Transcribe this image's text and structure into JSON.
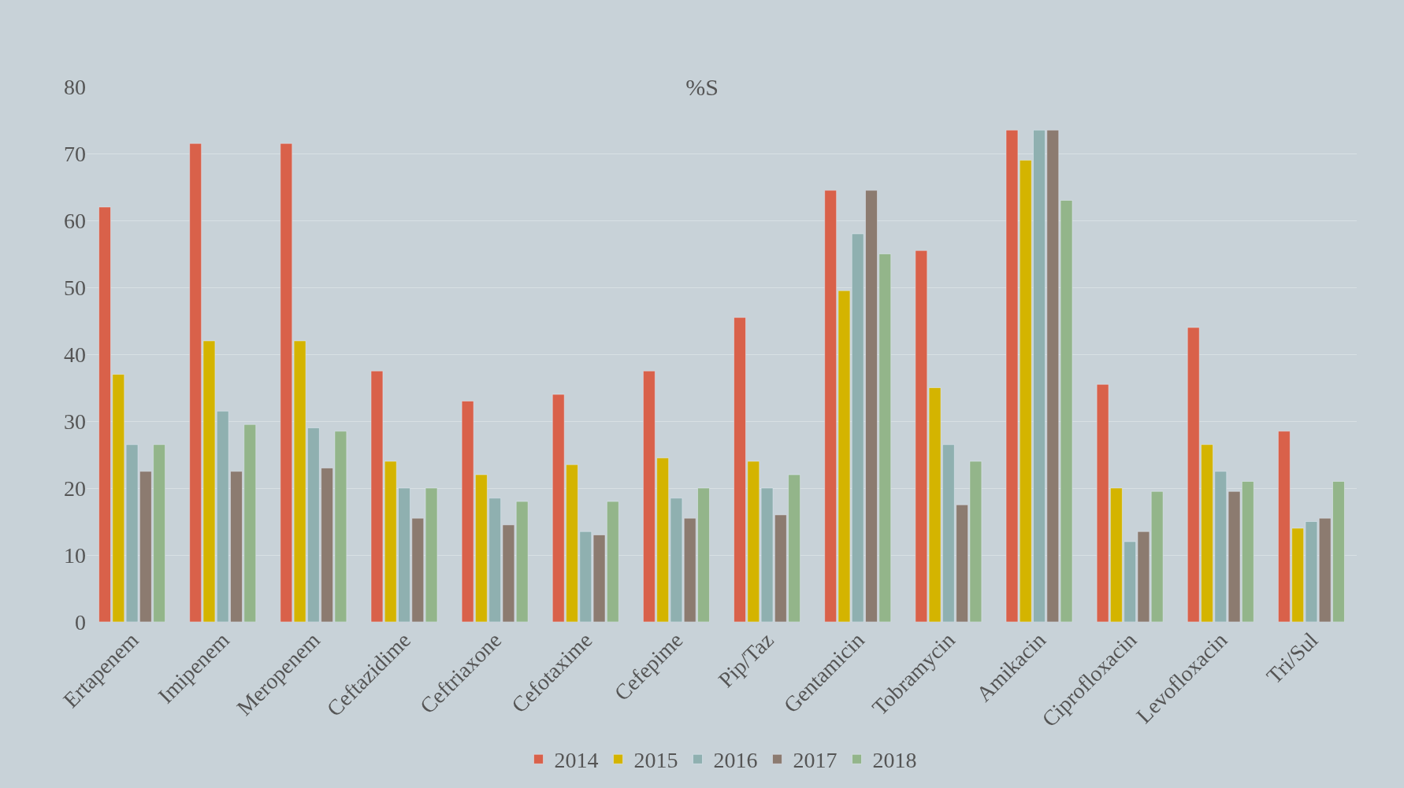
{
  "chart_data": {
    "type": "bar",
    "title": "%S",
    "categories": [
      "Ertapenem",
      "Imipenem",
      "Meropenem",
      "Ceftazidime",
      "Ceftriaxone",
      "Cefotaxime",
      "Cefepime",
      "Pip/Taz",
      "Gentamicin",
      "Tobramycin",
      "Amikacin",
      "Ciprofloxacin",
      "Levofloxacin",
      "Tri/Sul"
    ],
    "series": [
      {
        "name": "2014",
        "color": "#d9614a",
        "values": [
          62,
          71.5,
          71.5,
          37.5,
          33,
          34,
          37.5,
          45.5,
          64.5,
          55.5,
          73.5,
          35.5,
          44,
          28.5
        ]
      },
      {
        "name": "2015",
        "color": "#d4b400",
        "values": [
          37,
          42,
          42,
          24,
          22,
          23.5,
          24.5,
          24,
          49.5,
          35,
          69,
          20,
          26.5,
          14
        ]
      },
      {
        "name": "2016",
        "color": "#8fb0b0",
        "values": [
          26.5,
          31.5,
          29,
          20,
          18.5,
          13.5,
          18.5,
          20,
          58,
          26.5,
          73.5,
          12,
          22.5,
          15
        ]
      },
      {
        "name": "2017",
        "color": "#8c7b70",
        "values": [
          22.5,
          22.5,
          23,
          15.5,
          14.5,
          13,
          15.5,
          16,
          64.5,
          17.5,
          73.5,
          13.5,
          19.5,
          15.5
        ]
      },
      {
        "name": "2018",
        "color": "#93b58a",
        "values": [
          26.5,
          29.5,
          28.5,
          20,
          18,
          18,
          20,
          22,
          55,
          24,
          63,
          19.5,
          21,
          21
        ]
      }
    ],
    "ylim": [
      0,
      80
    ],
    "yticks": [
      0,
      10,
      20,
      30,
      40,
      50,
      60,
      70,
      80
    ],
    "grid": "y",
    "legend": "bottom"
  }
}
